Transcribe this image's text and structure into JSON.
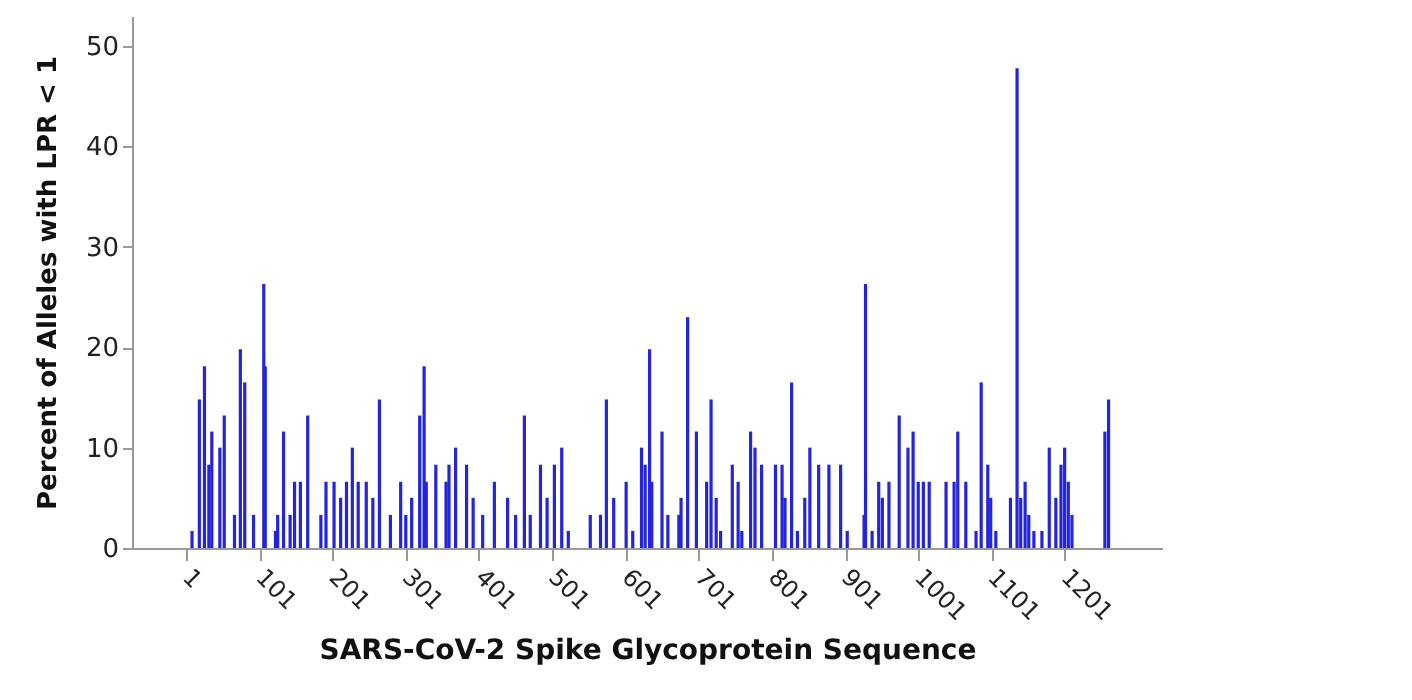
{
  "chart_data": {
    "type": "bar",
    "xlabel": "SARS-CoV-2 Spike Glycoprotein Sequence",
    "ylabel": "Percent of Alleles with LPR < 1",
    "x": [
      9,
      19,
      26,
      32,
      36,
      47,
      53,
      67,
      75,
      81,
      93,
      107,
      109,
      123,
      126,
      134,
      143,
      149,
      157,
      167,
      185,
      192,
      203,
      212,
      220,
      228,
      236,
      247,
      256,
      265,
      280,
      294,
      301,
      309,
      320,
      326,
      329,
      342,
      356,
      360,
      369,
      384,
      393,
      406,
      422,
      440,
      451,
      463,
      471,
      485,
      494,
      504,
      514,
      523,
      553,
      567,
      575,
      585,
      602,
      611,
      623,
      628,
      634,
      637,
      651,
      659,
      674,
      677,
      686,
      698,
      712,
      718,
      725,
      731,
      747,
      755,
      760,
      772,
      778,
      787,
      806,
      815,
      819,
      828,
      836,
      846,
      853,
      865,
      879,
      895,
      904,
      927,
      929,
      938,
      947,
      952,
      961,
      975,
      987,
      994,
      1001,
      1008,
      1016,
      1039,
      1050,
      1055,
      1066,
      1080,
      1087,
      1096,
      1100,
      1107,
      1127,
      1136,
      1141,
      1147,
      1152,
      1159,
      1170,
      1180,
      1189,
      1196,
      1201,
      1206,
      1211,
      1256,
      1261
    ],
    "values": [
      1.7,
      14.8,
      18.1,
      8.3,
      11.6,
      10,
      13.2,
      3.3,
      19.8,
      16.5,
      3.3,
      26.3,
      18.1,
      1.7,
      3.3,
      11.6,
      3.3,
      6.6,
      6.6,
      13.2,
      3.3,
      6.6,
      6.6,
      5,
      6.6,
      10,
      6.6,
      6.6,
      5,
      14.8,
      3.3,
      6.6,
      3.3,
      5,
      13.2,
      18.1,
      6.6,
      8.3,
      6.6,
      8.3,
      10,
      8.3,
      5,
      3.3,
      6.6,
      5,
      3.3,
      13.2,
      3.3,
      8.3,
      5,
      8.3,
      10,
      1.7,
      3.3,
      3.3,
      14.8,
      5,
      6.6,
      1.7,
      10,
      8.3,
      19.8,
      6.6,
      11.6,
      3.3,
      3.3,
      5,
      23,
      11.6,
      6.6,
      14.8,
      5,
      1.7,
      8.3,
      6.6,
      1.7,
      11.6,
      10,
      8.3,
      8.3,
      8.3,
      5,
      16.5,
      1.7,
      5,
      10,
      8.3,
      8.3,
      8.3,
      1.7,
      3.3,
      26.3,
      1.7,
      6.6,
      5,
      6.6,
      13.2,
      10,
      11.6,
      6.6,
      6.6,
      6.6,
      6.6,
      6.6,
      11.6,
      6.6,
      1.7,
      16.5,
      8.3,
      5,
      1.7,
      5,
      47.8,
      5,
      6.6,
      3.3,
      1.7,
      1.7,
      10,
      5,
      8.3,
      10,
      6.6,
      3.3,
      11.6,
      14.8
    ],
    "color": "#2424dc",
    "xlim": [
      -73,
      1334
    ],
    "xticks": [
      1,
      101,
      201,
      301,
      401,
      501,
      601,
      701,
      801,
      901,
      1001,
      1101,
      1201
    ],
    "ylim": [
      0,
      53
    ],
    "yticks": [
      0,
      10,
      20,
      30,
      40,
      50
    ],
    "grid": false
  }
}
